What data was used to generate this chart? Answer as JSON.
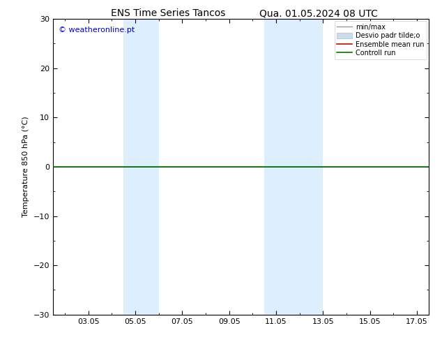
{
  "title_left": "ENS Time Series Tancos",
  "title_right": "Qua. 01.05.2024 08 UTC",
  "ylabel": "Temperature 850 hPa (°C)",
  "ylim": [
    -30,
    30
  ],
  "yticks": [
    -30,
    -20,
    -10,
    0,
    10,
    20,
    30
  ],
  "xtick_positions": [
    3,
    5,
    7,
    9,
    11,
    13,
    15,
    17
  ],
  "xtick_labels": [
    "03.05",
    "05.05",
    "07.05",
    "09.05",
    "11.05",
    "13.05",
    "15.05",
    "17.05"
  ],
  "x_min": 1.5,
  "x_max": 17.5,
  "watermark": "© weatheronline.pt",
  "watermark_color": "#0000cc",
  "bg_color": "#ffffff",
  "shaded_bands": [
    {
      "x_start": 4.5,
      "x_end": 6.0
    },
    {
      "x_start": 10.5,
      "x_end": 13.0
    }
  ],
  "shaded_color": "#ddeeff",
  "control_run_color": "#007700",
  "ensemble_mean_color": "#cc0000",
  "minmax_color": "#999999",
  "stddev_facecolor": "#ccddee",
  "stddev_edgecolor": "#aabbcc",
  "legend_labels": [
    "min/max",
    "Desvio padr tilde;o",
    "Ensemble mean run",
    "Controll run"
  ],
  "title_fontsize": 10,
  "tick_fontsize": 8,
  "ylabel_fontsize": 8,
  "watermark_fontsize": 8
}
